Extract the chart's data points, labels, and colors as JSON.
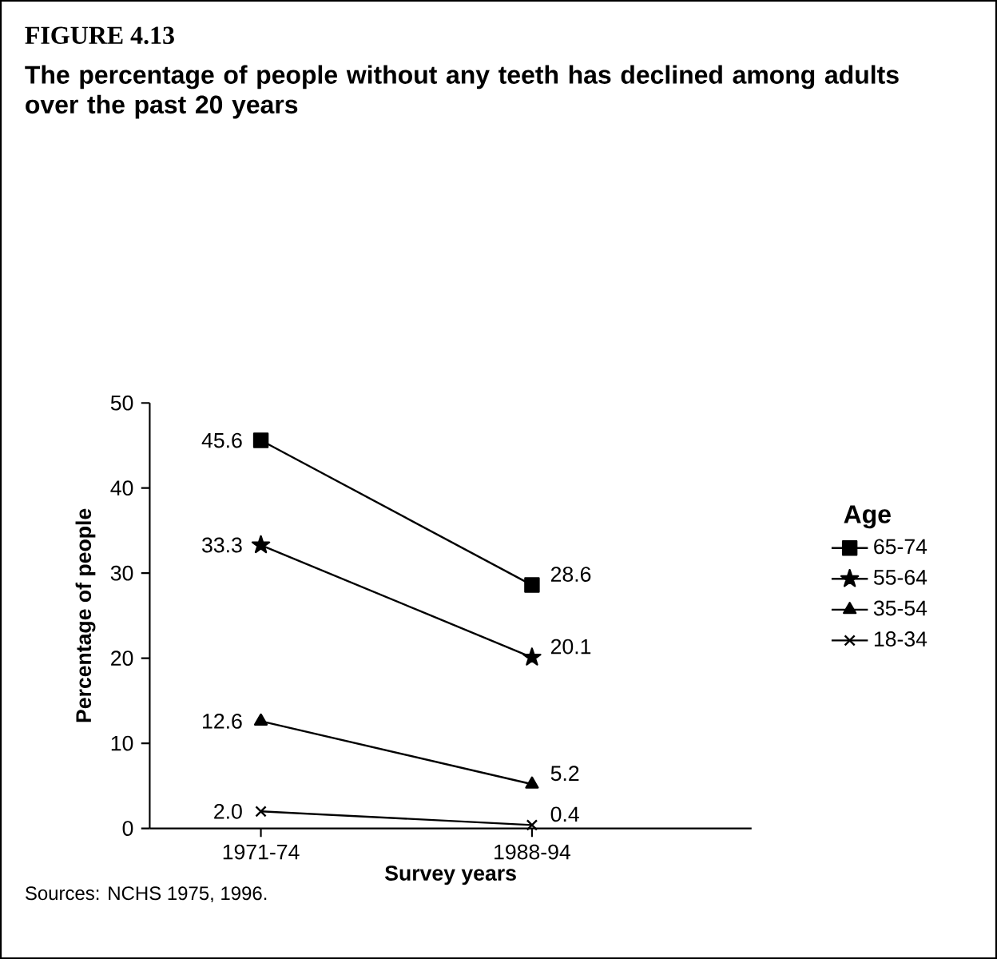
{
  "chart_data": {
    "type": "line",
    "title": "FIGURE 4.13",
    "subtitle": "The percentage of people without any teeth has declined among adults over the past 20 years",
    "categories": [
      "1971-74",
      "1988-94"
    ],
    "xlabel": "Survey years",
    "ylabel": "Percentage of people",
    "legend_title": "Age",
    "legend": "right",
    "ylim": [
      0,
      50
    ],
    "yticks": [
      0,
      10,
      20,
      30,
      40,
      50
    ],
    "grid": false,
    "series": [
      {
        "name": "65-74",
        "color": "#000000",
        "marker": "square",
        "values": [
          45.6,
          28.6
        ],
        "value_labels": [
          "45.6",
          "28.6"
        ]
      },
      {
        "name": "55-64",
        "color": "#000000",
        "marker": "star",
        "values": [
          33.3,
          20.1
        ],
        "value_labels": [
          "33.3",
          "20.1"
        ]
      },
      {
        "name": "35-54",
        "color": "#000000",
        "marker": "triangle",
        "values": [
          12.6,
          5.2
        ],
        "value_labels": [
          "12.6",
          "5.2"
        ]
      },
      {
        "name": "18-34",
        "color": "#000000",
        "marker": "cross",
        "values": [
          2.0,
          0.4
        ],
        "value_labels": [
          "2.0",
          "0.4"
        ]
      }
    ],
    "annotations": [
      "Sources: NCHS 1975, 1996."
    ]
  }
}
